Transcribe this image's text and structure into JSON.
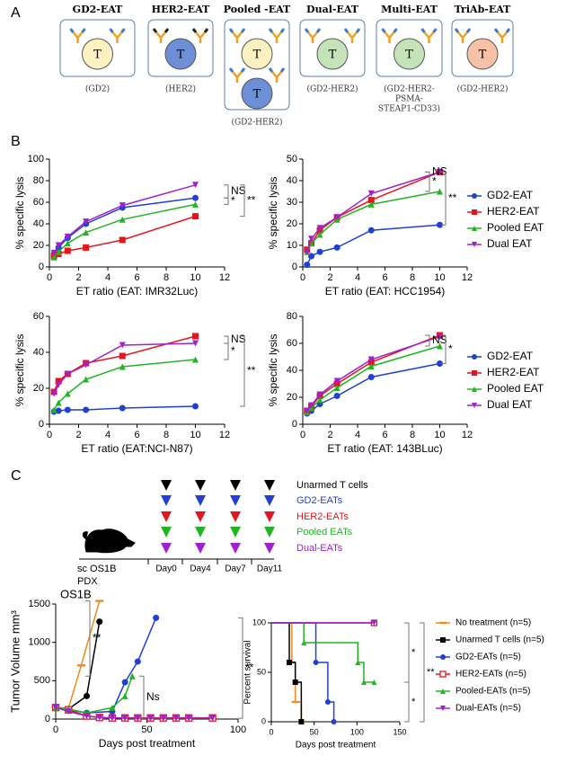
{
  "panel_labels": [
    "A",
    "B",
    "C"
  ],
  "diagram": {
    "cell_label": "T",
    "items": [
      {
        "title": "GD2-EAT",
        "target": [
          "(GD2)"
        ],
        "cells": [
          "#fdf1c0"
        ]
      },
      {
        "title": "HER2-EAT",
        "target": [
          "(HER2)"
        ],
        "cells": [
          "#6c8fd6"
        ]
      },
      {
        "title": "Pooled -EAT",
        "target": [
          "(GD2-HER2)"
        ],
        "cells": [
          "#fdf1c0",
          "#6c8fd6"
        ]
      },
      {
        "title": "Dual-EAT",
        "target": [
          "(GD2-HER2)"
        ],
        "cells": [
          "#c5e3b8"
        ]
      },
      {
        "title": "Multi-EAT",
        "target": [
          "(GD2-HER2-",
          "PSMA-",
          "STEAP1-CD33)"
        ],
        "cells": [
          "#c5e3b8"
        ]
      },
      {
        "title": "TriAb-EAT",
        "target": [
          "(GD2-HER2)"
        ],
        "cells": [
          "#f7c1a6"
        ]
      }
    ]
  },
  "schedule": {
    "model": [
      "sc OS1B",
      "PDX"
    ],
    "days": [
      "Day0",
      "Day4",
      "Day7",
      "Day11"
    ],
    "groups": [
      {
        "name": "Unarmed T cells",
        "color": "#000000"
      },
      {
        "name": "GD2-EATs",
        "color": "#1f3fd6"
      },
      {
        "name": "HER2-EATs",
        "color": "#e8141c"
      },
      {
        "name": "Pooled EATs",
        "color": "#22b522"
      },
      {
        "name": "Dual-EATs",
        "color": "#a020d0"
      }
    ]
  },
  "chart_data": [
    {
      "type": "line",
      "xlabel": "ET ratio (EAT: IMR32Luc)",
      "ylabel": "% specific lysis",
      "x": [
        0.3125,
        0.625,
        1.25,
        2.5,
        5,
        10
      ],
      "xlim": [
        0,
        12
      ],
      "xticks": [
        0,
        2,
        4,
        6,
        8,
        10,
        12
      ],
      "ylim": [
        0,
        100
      ],
      "yticks": [
        0,
        20,
        40,
        60,
        80,
        100
      ],
      "legend": false,
      "annotations": [
        "NS",
        "*",
        "**"
      ],
      "series": [
        {
          "name": "GD2-EAT",
          "color": "#1f3fd6",
          "marker": "circle",
          "values": [
            12,
            18,
            27,
            40,
            55,
            64
          ]
        },
        {
          "name": "HER2-EAT",
          "color": "#e8141c",
          "marker": "square",
          "values": [
            10,
            12,
            15,
            18,
            25,
            47
          ]
        },
        {
          "name": "Pooled EAT",
          "color": "#22b522",
          "marker": "triangle-up",
          "values": [
            9,
            14,
            22,
            32,
            44,
            58
          ]
        },
        {
          "name": "Dual EAT",
          "color": "#a020d0",
          "marker": "triangle-down",
          "values": [
            13,
            20,
            28,
            42,
            57,
            76
          ]
        }
      ]
    },
    {
      "type": "line",
      "xlabel": "ET ratio (EAT: HCC1954)",
      "ylabel": "% specific lysis",
      "x": [
        0.3125,
        0.625,
        1.25,
        2.5,
        5,
        10
      ],
      "xlim": [
        0,
        12
      ],
      "xticks": [
        0,
        2,
        4,
        6,
        8,
        10,
        12
      ],
      "ylim": [
        0,
        50
      ],
      "yticks": [
        0,
        10,
        20,
        30,
        40,
        50
      ],
      "legend": true,
      "annotations": [
        "NS",
        "*",
        "**"
      ],
      "series": [
        {
          "name": "GD2-EAT",
          "color": "#1f3fd6",
          "marker": "circle",
          "values": [
            1,
            5,
            7,
            9,
            17,
            19.5
          ]
        },
        {
          "name": "HER2-EAT",
          "color": "#e8141c",
          "marker": "square",
          "values": [
            8,
            11,
            17,
            23,
            31,
            44
          ]
        },
        {
          "name": "Pooled EAT",
          "color": "#22b522",
          "marker": "triangle-up",
          "values": [
            7,
            11,
            15,
            22,
            29,
            35
          ]
        },
        {
          "name": "Dual EAT",
          "color": "#a020d0",
          "marker": "triangle-down",
          "values": [
            7,
            13,
            18,
            23,
            34,
            44
          ]
        }
      ]
    },
    {
      "type": "line",
      "xlabel": "ET ratio (EAT:NCI-N87)",
      "ylabel": "% specific lysis",
      "x": [
        0.3125,
        0.625,
        1.25,
        2.5,
        5,
        10
      ],
      "xlim": [
        0,
        12
      ],
      "xticks": [
        0,
        2,
        4,
        6,
        8,
        10,
        12
      ],
      "ylim": [
        0,
        60
      ],
      "yticks": [
        0,
        20,
        40,
        60
      ],
      "legend": false,
      "annotations": [
        "NS",
        "*",
        "**"
      ],
      "series": [
        {
          "name": "GD2-EAT",
          "color": "#1f3fd6",
          "marker": "circle",
          "values": [
            7,
            7.5,
            8,
            8,
            9,
            10
          ]
        },
        {
          "name": "HER2-EAT",
          "color": "#e8141c",
          "marker": "square",
          "values": [
            18,
            24,
            28,
            34,
            38,
            49
          ]
        },
        {
          "name": "Pooled EAT",
          "color": "#22b522",
          "marker": "triangle-up",
          "values": [
            8,
            12,
            17,
            25,
            32,
            36
          ]
        },
        {
          "name": "Dual EAT",
          "color": "#a020d0",
          "marker": "triangle-down",
          "values": [
            17,
            22,
            28,
            33,
            44,
            45
          ]
        }
      ]
    },
    {
      "type": "line",
      "xlabel": "ET ratio (EAT: 143BLuc)",
      "ylabel": "% specific lysis",
      "x": [
        0.3125,
        0.625,
        1.25,
        2.5,
        5,
        10
      ],
      "xlim": [
        0,
        12
      ],
      "xticks": [
        0,
        2,
        4,
        6,
        8,
        10,
        12
      ],
      "ylim": [
        0,
        80
      ],
      "yticks": [
        0,
        20,
        40,
        60,
        80
      ],
      "legend": true,
      "annotations": [
        "NS",
        "*"
      ],
      "series": [
        {
          "name": "GD2-EAT",
          "color": "#1f3fd6",
          "marker": "circle",
          "values": [
            8,
            10,
            15,
            21,
            35,
            45
          ]
        },
        {
          "name": "HER2-EAT",
          "color": "#e8141c",
          "marker": "square",
          "values": [
            10,
            13,
            21,
            30,
            46,
            66
          ]
        },
        {
          "name": "Pooled EAT",
          "color": "#22b522",
          "marker": "triangle-up",
          "values": [
            9,
            12,
            18,
            27,
            43,
            58
          ]
        },
        {
          "name": "Dual EAT",
          "color": "#a020d0",
          "marker": "triangle-down",
          "values": [
            10,
            14,
            22,
            32,
            48,
            65
          ]
        }
      ]
    },
    {
      "type": "line",
      "title": "OS1B",
      "xlabel": "Days post treatment",
      "ylabel": "Tumor Volume mm³",
      "xlim": [
        0,
        100
      ],
      "xticks": [
        0,
        50,
        100
      ],
      "ylim": [
        0,
        1500
      ],
      "yticks": [
        0,
        500,
        1000,
        1500
      ],
      "legend": false,
      "annotations": [
        "**",
        "**",
        "Ns"
      ],
      "series": [
        {
          "name": "No treatment",
          "color": "#f08a1a",
          "marker": "dash",
          "x": [
            0,
            7,
            14,
            24
          ],
          "values": [
            150,
            140,
            700,
            1540
          ]
        },
        {
          "name": "Unarmed T cells",
          "color": "#000000",
          "marker": "circle",
          "x": [
            0,
            7,
            17,
            24
          ],
          "values": [
            150,
            130,
            300,
            1270
          ]
        },
        {
          "name": "GD2-EATs",
          "color": "#1f3fd6",
          "marker": "circle",
          "x": [
            0,
            7,
            17,
            31,
            38,
            45,
            55
          ],
          "values": [
            150,
            120,
            80,
            100,
            480,
            750,
            1320
          ]
        },
        {
          "name": "HER2-EATs",
          "color": "#e8141c",
          "marker": "square-open",
          "x": [
            0,
            7,
            17,
            24,
            31,
            38,
            45,
            52,
            59,
            66,
            73,
            86
          ],
          "values": [
            150,
            120,
            40,
            20,
            15,
            15,
            15,
            15,
            15,
            15,
            15,
            15
          ]
        },
        {
          "name": "Pooled-EATs",
          "color": "#22b522",
          "marker": "triangle-up",
          "x": [
            0,
            7,
            17,
            31,
            38,
            42
          ],
          "values": [
            150,
            130,
            80,
            150,
            300,
            560
          ]
        },
        {
          "name": "Dual-EATs",
          "color": "#a020d0",
          "marker": "triangle-down",
          "x": [
            0,
            7,
            17,
            24,
            31,
            38,
            45,
            52,
            59,
            66,
            73,
            86
          ],
          "values": [
            150,
            100,
            40,
            20,
            15,
            12,
            10,
            10,
            10,
            10,
            10,
            10
          ]
        }
      ]
    },
    {
      "type": "step",
      "xlabel": "Days post treatment",
      "ylabel": "Percent survival",
      "xlim": [
        0,
        150
      ],
      "xticks": [
        0,
        50,
        100,
        150
      ],
      "ylim": [
        0,
        100
      ],
      "yticks": [
        0,
        50,
        100
      ],
      "legend": true,
      "annotations": [
        "*",
        "*",
        "**"
      ],
      "series": [
        {
          "name": "No treatment (n=5)",
          "color": "#f08a1a",
          "marker": "dash",
          "x": [
            0,
            24,
            28,
            35
          ],
          "values": [
            100,
            60,
            20,
            0
          ]
        },
        {
          "name": "Unarmed T cells (n=5)",
          "color": "#000000",
          "marker": "square",
          "x": [
            0,
            21,
            28,
            35
          ],
          "values": [
            100,
            60,
            40,
            0
          ]
        },
        {
          "name": "GD2-EATs (n=5)",
          "color": "#1f3fd6",
          "marker": "circle",
          "x": [
            0,
            52,
            66,
            73
          ],
          "values": [
            100,
            60,
            20,
            0
          ]
        },
        {
          "name": "HER2-EATs (n=5)",
          "color": "#e8141c",
          "marker": "square-open",
          "x": [
            0,
            120
          ],
          "values": [
            100,
            100
          ]
        },
        {
          "name": "Pooled-EATs (n=5)",
          "color": "#22b522",
          "marker": "triangle-up",
          "x": [
            0,
            38,
            101,
            108,
            120
          ],
          "values": [
            100,
            80,
            60,
            40,
            40
          ]
        },
        {
          "name": "Dual-EATs (n=5)",
          "color": "#a020d0",
          "marker": "triangle-down",
          "x": [
            0,
            120
          ],
          "values": [
            100,
            100
          ]
        }
      ]
    }
  ]
}
